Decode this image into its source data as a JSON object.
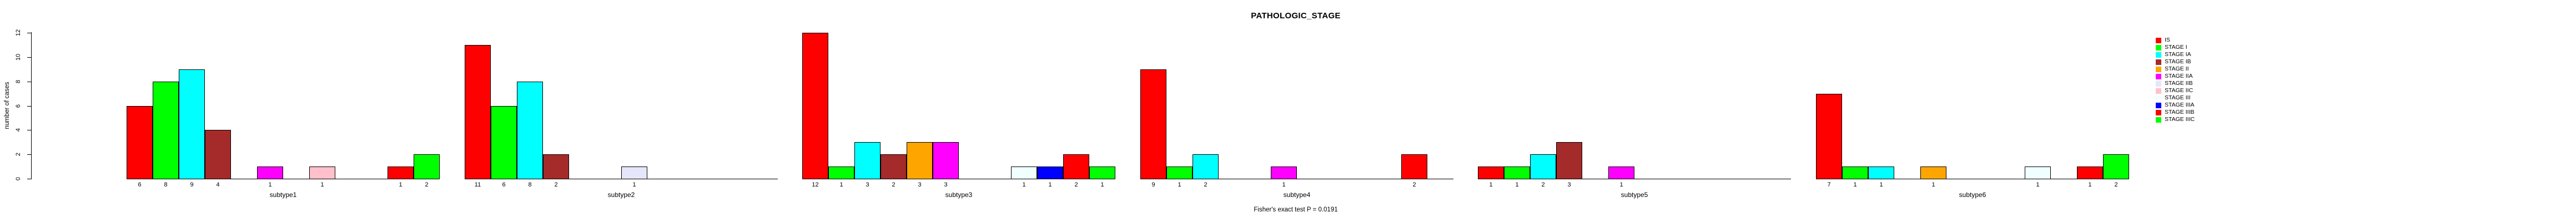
{
  "title": "PATHOLOGIC_STAGE",
  "annotation": "Fisher's exact test P = 0.0191",
  "y_axis": {
    "label": "number of cases",
    "ticks": [
      0,
      2,
      4,
      6,
      8,
      10,
      12
    ]
  },
  "legend": {
    "entries": [
      {
        "label": "IS",
        "color": "#FF0000"
      },
      {
        "label": "STAGE I",
        "color": "#00FF00"
      },
      {
        "label": "STAGE IA",
        "color": "#00FFFF"
      },
      {
        "label": "STAGE IB",
        "color": "#A52A2A"
      },
      {
        "label": "STAGE II",
        "color": "#FFA500"
      },
      {
        "label": "STAGE IIA",
        "color": "#FF00FF"
      },
      {
        "label": "STAGE IIB",
        "color": "#E6E6FA"
      },
      {
        "label": "STAGE IIC",
        "color": "#FFC0CB"
      },
      {
        "label": "STAGE III",
        "color": "#F0FFFF"
      },
      {
        "label": "STAGE IIIA",
        "color": "#0000FF"
      },
      {
        "label": "STAGE IIIB",
        "color": "#FF0000"
      },
      {
        "label": "STAGE IIIC",
        "color": "#00FF00"
      }
    ]
  },
  "chart_data": {
    "type": "bar",
    "title": "PATHOLOGIC_STAGE",
    "annotation": "Fisher's exact test P = 0.0191",
    "ylabel": "number of cases",
    "ylim": [
      0,
      12
    ],
    "yticks": [
      0,
      2,
      4,
      6,
      8,
      10,
      12
    ],
    "grid": false,
    "legend_position": "right",
    "categories": [
      "IS",
      "STAGE I",
      "STAGE IA",
      "STAGE IB",
      "STAGE II",
      "STAGE IIA",
      "STAGE IIB",
      "STAGE IIC",
      "STAGE III",
      "STAGE IIIA",
      "STAGE IIIB",
      "STAGE IIIC"
    ],
    "colors": [
      "#FF0000",
      "#00FF00",
      "#00FFFF",
      "#A52A2A",
      "#FFA500",
      "#FF00FF",
      "#E6E6FA",
      "#FFC0CB",
      "#F0FFFF",
      "#0000FF",
      "#FF0000",
      "#00FF00"
    ],
    "series": [
      {
        "name": "subtype1",
        "values": [
          6,
          8,
          9,
          4,
          0,
          1,
          0,
          1,
          0,
          0,
          1,
          2
        ]
      },
      {
        "name": "subtype2",
        "values": [
          11,
          6,
          8,
          2,
          0,
          0,
          1,
          0,
          0,
          0,
          0,
          0
        ]
      },
      {
        "name": "subtype3",
        "values": [
          12,
          1,
          3,
          2,
          3,
          3,
          0,
          0,
          1,
          1,
          2,
          1
        ]
      },
      {
        "name": "subtype4",
        "values": [
          9,
          1,
          2,
          0,
          0,
          1,
          0,
          0,
          0,
          0,
          2,
          0
        ]
      },
      {
        "name": "subtype5",
        "values": [
          1,
          1,
          2,
          3,
          0,
          1,
          0,
          0,
          0,
          0,
          0,
          0
        ]
      },
      {
        "name": "subtype6",
        "values": [
          7,
          1,
          1,
          0,
          1,
          0,
          0,
          0,
          1,
          0,
          1,
          2
        ]
      }
    ]
  }
}
